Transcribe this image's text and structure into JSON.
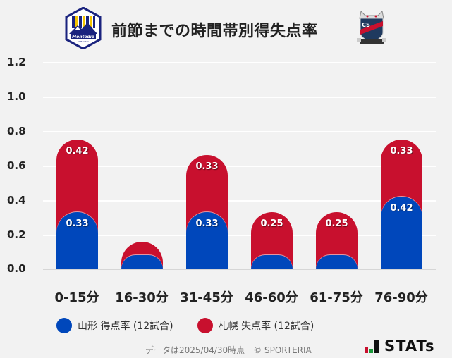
{
  "header": {
    "title": "前節までの時間帯別得失点率",
    "left_logo": "montedio-yamagata-crest",
    "right_logo": "consadole-sapporo-crest"
  },
  "chart_data": {
    "type": "bar",
    "stacked": true,
    "title": "前節までの時間帯別得失点率",
    "xlabel": "",
    "ylabel": "",
    "ylim": [
      0,
      1.2
    ],
    "yticks": [
      "1.2",
      "1.0",
      "0.8",
      "0.6",
      "0.4",
      "0.2",
      "0.0"
    ],
    "grid": true,
    "legend_position": "bottom",
    "categories": [
      "0-15分",
      "16-30分",
      "31-45分",
      "46-60分",
      "61-75分",
      "76-90分"
    ],
    "series": [
      {
        "name": "山形 得点率 (12試合)",
        "color": "#0047bb",
        "values": [
          0.33,
          0.08,
          0.33,
          0.08,
          0.08,
          0.42
        ],
        "labels": [
          "0.33",
          "",
          "0.33",
          "",
          "",
          "0.42"
        ]
      },
      {
        "name": "札幌 失点率 (12試合)",
        "color": "#c8102e",
        "values": [
          0.42,
          0.08,
          0.33,
          0.25,
          0.25,
          0.33
        ],
        "labels": [
          "0.42",
          "",
          "0.33",
          "0.25",
          "0.25",
          "0.33"
        ]
      }
    ]
  },
  "legend": {
    "items": [
      {
        "label": "山形 得点率 (12試合)",
        "color": "#0047bb"
      },
      {
        "label": "札幌 失点率 (12試合)",
        "color": "#c8102e"
      }
    ]
  },
  "footer": {
    "text": "データは2025/04/30時点　© SPORTERIA",
    "brand": "STATs"
  }
}
